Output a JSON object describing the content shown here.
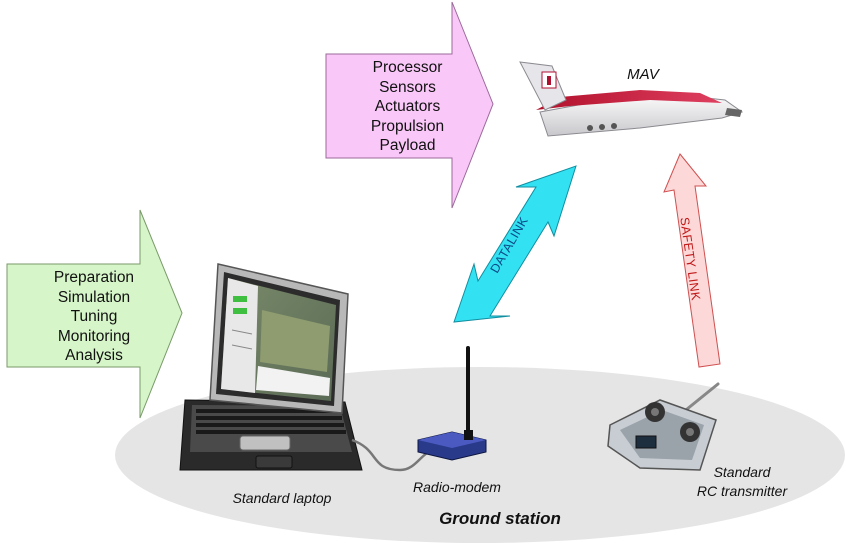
{
  "arrows": {
    "mav_subsystems": [
      "Processor",
      "Sensors",
      "Actuators",
      "Propulsion",
      "Payload"
    ],
    "ground_tasks": [
      "Preparation",
      "Simulation",
      "Tuning",
      "Monitoring",
      "Analysis"
    ]
  },
  "links": {
    "datalink": "DATALINK",
    "safety": "SAFETY LINK"
  },
  "labels": {
    "mav": "MAV",
    "laptop": "Standard laptop",
    "modem": "Radio-modem",
    "rc_line1": "Standard",
    "rc_line2": "RC transmitter",
    "ground": "Ground station"
  },
  "colors": {
    "pink_arrow": "#FAC8F8",
    "green_arrow": "#D6F5C8",
    "datalink": "#33E2F2",
    "safety": "#FCD8D8",
    "ground_ellipse": "#E5E5E5"
  }
}
